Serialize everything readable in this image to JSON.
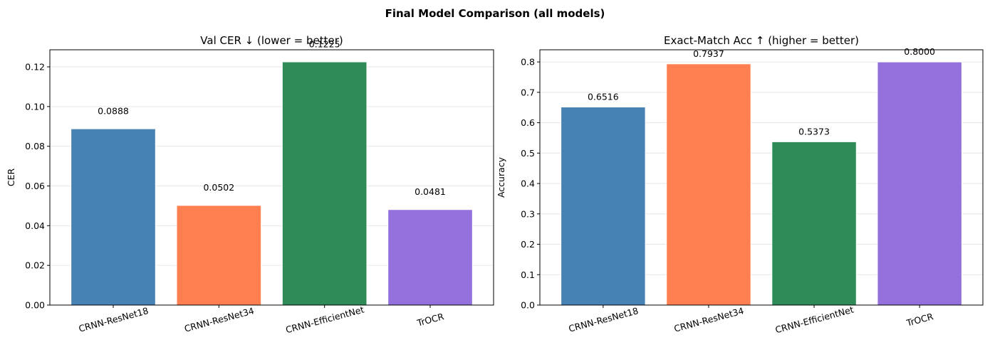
{
  "suptitle": "Final Model Comparison (all models)",
  "colors": [
    "#4682b4",
    "#ff7f50",
    "#2e8b57",
    "#9370db"
  ],
  "chart_data": [
    {
      "type": "bar",
      "title": "Val CER ↓ (lower = better)",
      "xlabel": "",
      "ylabel": "CER",
      "categories": [
        "CRNN-ResNet18",
        "CRNN-ResNet34",
        "CRNN-EfficientNet",
        "TrOCR"
      ],
      "values": [
        0.0888,
        0.0502,
        0.1225,
        0.0481
      ],
      "value_labels": [
        "0.0888",
        "0.0502",
        "0.1225",
        "0.0481"
      ],
      "ylim": [
        0,
        0.1286
      ],
      "yticks": [
        0,
        0.02,
        0.04,
        0.06,
        0.08,
        0.1,
        0.12
      ],
      "ytick_labels": [
        "0.00",
        "0.02",
        "0.04",
        "0.06",
        "0.08",
        "0.10",
        "0.12"
      ],
      "grid": "y"
    },
    {
      "type": "bar",
      "title": "Exact-Match Acc ↑ (higher = better)",
      "xlabel": "",
      "ylabel": "Accuracy",
      "categories": [
        "CRNN-ResNet18",
        "CRNN-ResNet34",
        "CRNN-EfficientNet",
        "TrOCR"
      ],
      "values": [
        0.6516,
        0.7937,
        0.5373,
        0.8
      ],
      "value_labels": [
        "0.6516",
        "0.7937",
        "0.5373",
        "0.8000"
      ],
      "ylim": [
        0,
        0.84
      ],
      "yticks": [
        0,
        0.1,
        0.2,
        0.3,
        0.4,
        0.5,
        0.6,
        0.7,
        0.8
      ],
      "ytick_labels": [
        "0.0",
        "0.1",
        "0.2",
        "0.3",
        "0.4",
        "0.5",
        "0.6",
        "0.7",
        "0.8"
      ],
      "grid": "y"
    }
  ]
}
